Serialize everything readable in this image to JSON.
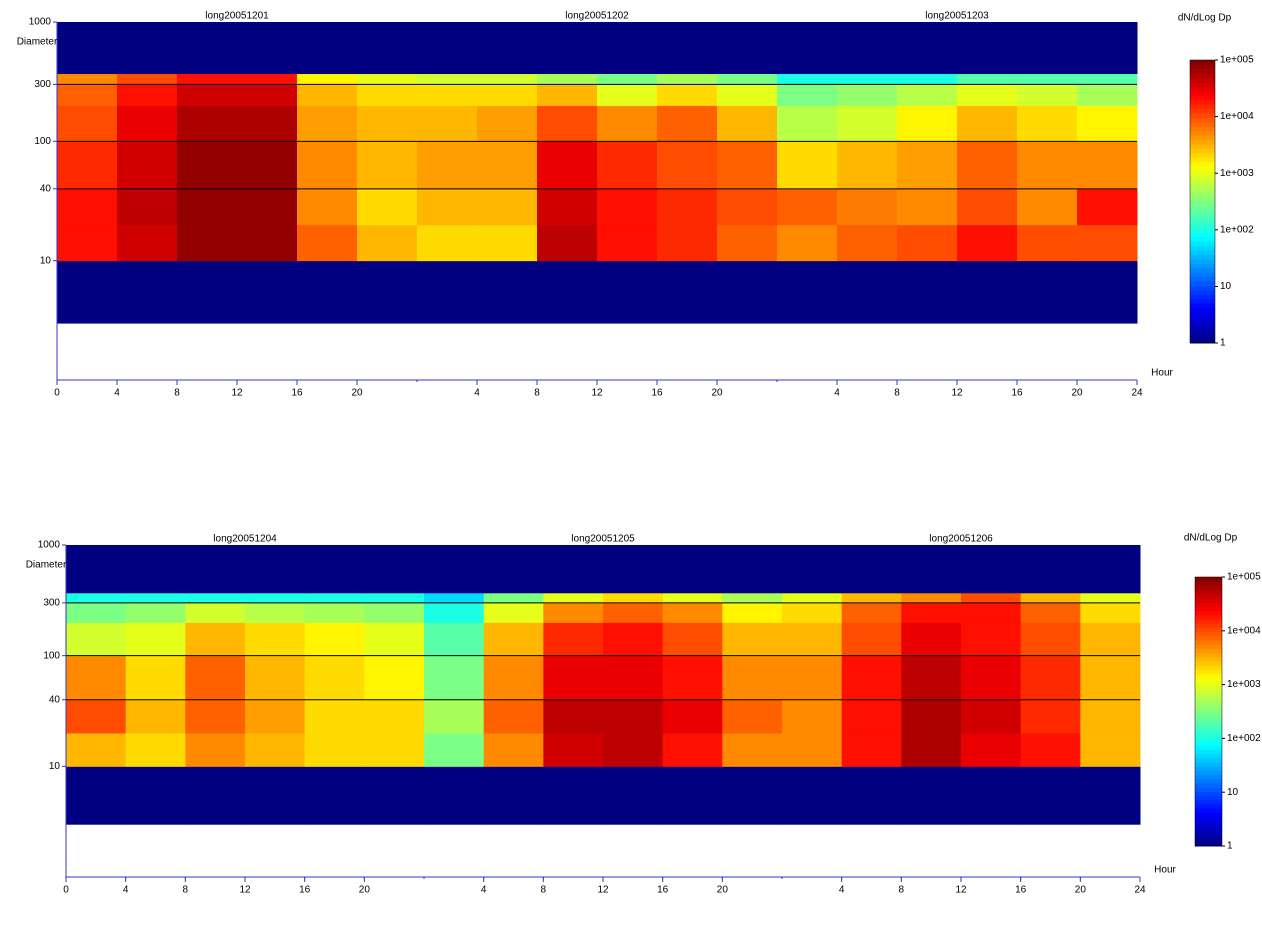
{
  "chart_data": [
    {
      "type": "heatmap",
      "titles": [
        "long20051201",
        "long20051202",
        "long20051203"
      ],
      "y_label": "Diameter",
      "x_label": "Hour",
      "colorbar_label": "dN/dLog Dp",
      "log_y": true,
      "log_color": true,
      "grid": true,
      "xlim": [
        0,
        72
      ],
      "ylim": [
        1,
        1000
      ],
      "clim": [
        1,
        100000
      ],
      "xticks": [
        0,
        4,
        8,
        12,
        16,
        20,
        {
          "value": 28,
          "label": "4"
        },
        {
          "value": 32,
          "label": "8"
        },
        {
          "value": 36,
          "label": "12"
        },
        {
          "value": 40,
          "label": "16"
        },
        {
          "value": 44,
          "label": "20"
        },
        {
          "value": 52,
          "label": "4"
        },
        {
          "value": 56,
          "label": "8"
        },
        {
          "value": 60,
          "label": "12"
        },
        {
          "value": 64,
          "label": "16"
        },
        {
          "value": 68,
          "label": "20"
        },
        {
          "value": 72,
          "label": "24"
        }
      ],
      "yticks": [
        10,
        40,
        100,
        300,
        1000
      ],
      "cticks": [
        1,
        10,
        {
          "value": 100,
          "label": "1e+002"
        },
        {
          "value": 1000,
          "label": "1e+003"
        },
        {
          "value": 10000,
          "label": "1e+004"
        },
        {
          "value": 100000,
          "label": "1e+005"
        }
      ],
      "xbins": [
        0,
        4,
        8,
        12,
        16,
        20,
        24,
        28,
        32,
        36,
        40,
        44,
        48,
        52,
        56,
        60,
        64,
        68,
        72
      ],
      "ybins": [
        3,
        10,
        20,
        40,
        100,
        200,
        300,
        370,
        1000
      ],
      "z": [
        [
          1,
          1,
          1,
          1,
          1,
          1,
          1,
          1,
          1,
          1,
          1,
          1,
          1,
          1,
          1,
          1,
          1,
          1
        ],
        [
          20000,
          40000,
          80000,
          80000,
          8000,
          3000,
          2000,
          2000,
          50000,
          20000,
          15000,
          8000,
          5000,
          8000,
          10000,
          20000,
          10000,
          10000
        ],
        [
          20000,
          50000,
          80000,
          80000,
          5000,
          2000,
          3000,
          3000,
          40000,
          20000,
          15000,
          10000,
          8000,
          6000,
          5000,
          10000,
          5000,
          20000
        ],
        [
          15000,
          40000,
          80000,
          80000,
          5000,
          3000,
          4000,
          4000,
          30000,
          15000,
          10000,
          8000,
          2000,
          3000,
          4000,
          8000,
          5000,
          5000
        ],
        [
          10000,
          30000,
          60000,
          60000,
          4000,
          3000,
          3000,
          4000,
          10000,
          5000,
          8000,
          3000,
          600,
          800,
          1500,
          3000,
          2000,
          1500
        ],
        [
          8000,
          20000,
          40000,
          40000,
          3000,
          2000,
          2000,
          2000,
          3000,
          1000,
          2000,
          1000,
          300,
          400,
          600,
          1000,
          800,
          500
        ],
        [
          5000,
          10000,
          20000,
          20000,
          1500,
          1000,
          800,
          800,
          500,
          300,
          500,
          300,
          100,
          100,
          100,
          200,
          200,
          200
        ],
        [
          1,
          1,
          1,
          1,
          1,
          1,
          1,
          1,
          1,
          1,
          1,
          1,
          1,
          1,
          1,
          1,
          1,
          1
        ]
      ]
    },
    {
      "type": "heatmap",
      "titles": [
        "long20051204",
        "long20051205",
        "long20051206"
      ],
      "y_label": "Diameter",
      "x_label": "Hour",
      "colorbar_label": "dN/dLog Dp",
      "log_y": true,
      "log_color": true,
      "grid": true,
      "xlim": [
        0,
        72
      ],
      "ylim": [
        1,
        1000
      ],
      "clim": [
        1,
        100000
      ],
      "xticks": [
        0,
        4,
        8,
        12,
        16,
        20,
        {
          "value": 28,
          "label": "4"
        },
        {
          "value": 32,
          "label": "8"
        },
        {
          "value": 36,
          "label": "12"
        },
        {
          "value": 40,
          "label": "16"
        },
        {
          "value": 44,
          "label": "20"
        },
        {
          "value": 52,
          "label": "4"
        },
        {
          "value": 56,
          "label": "8"
        },
        {
          "value": 60,
          "label": "12"
        },
        {
          "value": 64,
          "label": "16"
        },
        {
          "value": 68,
          "label": "20"
        },
        {
          "value": 72,
          "label": "24"
        }
      ],
      "yticks": [
        10,
        40,
        100,
        300,
        1000
      ],
      "cticks": [
        1,
        10,
        {
          "value": 100,
          "label": "1e+002"
        },
        {
          "value": 1000,
          "label": "1e+003"
        },
        {
          "value": 10000,
          "label": "1e+004"
        },
        {
          "value": 100000,
          "label": "1e+005"
        }
      ],
      "xbins": [
        0,
        4,
        8,
        12,
        16,
        20,
        24,
        28,
        32,
        36,
        40,
        44,
        48,
        52,
        56,
        60,
        64,
        68,
        72
      ],
      "ybins": [
        3,
        10,
        20,
        40,
        100,
        200,
        300,
        370,
        1000
      ],
      "z": [
        [
          1,
          1,
          1,
          1,
          1,
          1,
          1,
          1,
          1,
          1,
          1,
          1,
          1,
          1,
          1,
          1,
          1,
          1
        ],
        [
          3000,
          2000,
          5000,
          3000,
          2000,
          2000,
          300,
          5000,
          40000,
          50000,
          20000,
          5000,
          5000,
          20000,
          60000,
          30000,
          20000,
          3000
        ],
        [
          10000,
          3000,
          8000,
          4000,
          2000,
          2000,
          500,
          8000,
          50000,
          50000,
          30000,
          8000,
          5000,
          20000,
          60000,
          40000,
          15000,
          3000
        ],
        [
          5000,
          2000,
          8000,
          3000,
          2000,
          1500,
          300,
          5000,
          30000,
          30000,
          20000,
          5000,
          5000,
          20000,
          50000,
          30000,
          15000,
          3000
        ],
        [
          800,
          1000,
          3000,
          2000,
          1500,
          1000,
          200,
          3000,
          15000,
          20000,
          10000,
          3000,
          3000,
          10000,
          30000,
          20000,
          10000,
          3000
        ],
        [
          300,
          400,
          800,
          600,
          500,
          400,
          100,
          1000,
          5000,
          8000,
          5000,
          1500,
          2000,
          8000,
          20000,
          20000,
          8000,
          2000
        ],
        [
          100,
          100,
          100,
          100,
          100,
          100,
          50,
          300,
          1000,
          2000,
          1000,
          500,
          1000,
          3000,
          5000,
          10000,
          3000,
          1000
        ],
        [
          1,
          1,
          1,
          1,
          1,
          1,
          1,
          1,
          1,
          1,
          1,
          1,
          1,
          1,
          1,
          1,
          1,
          1
        ]
      ]
    }
  ]
}
